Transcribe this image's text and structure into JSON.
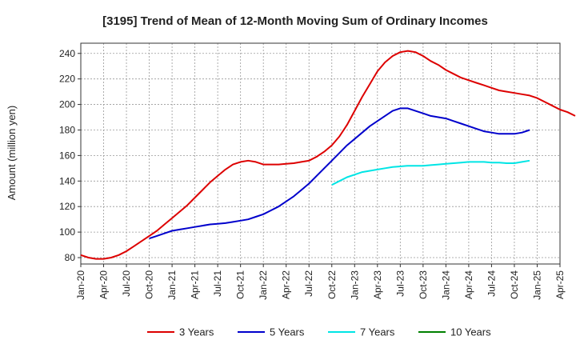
{
  "chart_data": {
    "type": "line",
    "title": "[3195]  Trend of Mean of 12-Month Moving Sum of Ordinary Incomes",
    "xlabel": "",
    "ylabel": "Amount (million yen)",
    "ylim": [
      75,
      248
    ],
    "yticks": [
      80,
      100,
      120,
      140,
      160,
      180,
      200,
      220,
      240
    ],
    "xlim": [
      "2020-01",
      "2025-04"
    ],
    "xticks": [
      "Jan-20",
      "Apr-20",
      "Jul-20",
      "Oct-20",
      "Jan-21",
      "Apr-21",
      "Jul-21",
      "Oct-21",
      "Jan-22",
      "Apr-22",
      "Jul-22",
      "Oct-22",
      "Jan-23",
      "Apr-23",
      "Jul-23",
      "Oct-23",
      "Jan-24",
      "Apr-24",
      "Jul-24",
      "Oct-24",
      "Jan-25",
      "Apr-25"
    ],
    "grid": true,
    "legend_position": "bottom",
    "series": [
      {
        "name": "3 Years",
        "color": "#dd0000",
        "start": "2020-01",
        "values": [
          82,
          80,
          79,
          79,
          80,
          82,
          85,
          89,
          93,
          97,
          101,
          106,
          111,
          116,
          121,
          127,
          133,
          139,
          144,
          149,
          153,
          155,
          156,
          155,
          153,
          153,
          153,
          153.5,
          154,
          155,
          156,
          159,
          163,
          168,
          175,
          184,
          195,
          206,
          216,
          226,
          233,
          238,
          241,
          242,
          241,
          238,
          234,
          231,
          227,
          224,
          221,
          219,
          217,
          215,
          213,
          211,
          210,
          209,
          208,
          207,
          205,
          202,
          199,
          196,
          194,
          191
        ]
      },
      {
        "name": "5 Years",
        "color": "#0000cc",
        "start": "2020-10",
        "values": [
          95,
          97,
          99,
          101,
          102,
          103,
          104,
          105,
          106,
          106.5,
          107,
          108,
          109,
          110,
          112,
          114,
          117,
          120,
          124,
          128,
          133,
          138,
          144,
          150,
          156,
          162,
          168,
          173,
          178,
          183,
          187,
          191,
          195,
          197,
          197,
          195,
          193,
          191,
          190,
          189,
          187,
          185,
          183,
          181,
          179,
          178,
          177,
          177,
          177,
          178,
          180
        ]
      },
      {
        "name": "7 Years",
        "color": "#00e5e5",
        "start": "2022-10",
        "values": [
          137,
          140,
          143,
          145,
          147,
          148,
          149,
          150,
          151,
          151.5,
          152,
          152,
          152,
          152.5,
          153,
          153.5,
          154,
          154.5,
          155,
          155,
          155,
          154.5,
          154.5,
          154,
          154,
          155,
          156
        ]
      },
      {
        "name": "10 Years",
        "color": "#008000",
        "start": "2025-01",
        "values": []
      }
    ]
  }
}
